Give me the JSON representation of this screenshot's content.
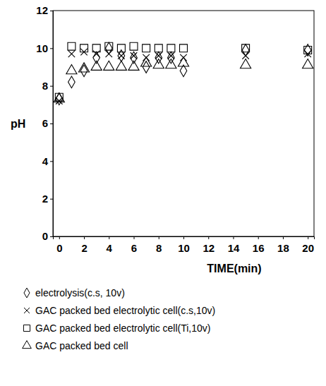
{
  "chart_data": {
    "type": "scatter",
    "x_label": "TIME(min)",
    "y_label": "pH",
    "x": [
      0,
      1,
      2,
      3,
      4,
      5,
      6,
      7,
      8,
      9,
      10,
      15,
      20
    ],
    "xlim": [
      -0.5,
      20.5
    ],
    "xticks": [
      0,
      2,
      4,
      6,
      8,
      10,
      12,
      14,
      16,
      18,
      20
    ],
    "ylim": [
      0,
      12
    ],
    "yticks": [
      0,
      2,
      4,
      6,
      8,
      10,
      12
    ],
    "grid": false,
    "legend": "bottom",
    "series": [
      {
        "name": "electrolysis(c.s, 10v)",
        "color": "#000000",
        "marker": "diamond",
        "values": [
          7.3,
          8.2,
          8.8,
          9.5,
          10.0,
          9.6,
          9.5,
          9.0,
          9.5,
          9.5,
          8.8,
          9.9,
          9.9
        ]
      },
      {
        "name": "GAC packed bed electrolytic cell(c.s,10v)",
        "color": "#000000",
        "marker": "x",
        "values": [
          7.2,
          9.7,
          9.8,
          9.7,
          9.7,
          9.6,
          9.6,
          9.5,
          9.6,
          9.6,
          9.5,
          9.6,
          9.7
        ]
      },
      {
        "name": "GAC packed bed electrolytic cell(Ti,10v)",
        "color": "#000000",
        "marker": "square",
        "values": [
          7.4,
          10.1,
          10.0,
          10.0,
          10.1,
          10.0,
          10.1,
          10.0,
          10.0,
          10.0,
          10.0,
          10.0,
          9.9
        ]
      },
      {
        "name": "GAC packed bed cell",
        "color": "#000000",
        "marker": "triangle",
        "values": [
          7.3,
          8.8,
          8.9,
          9.0,
          9.0,
          9.0,
          9.0,
          9.2,
          9.1,
          9.1,
          9.2,
          9.1,
          9.1
        ]
      }
    ]
  }
}
